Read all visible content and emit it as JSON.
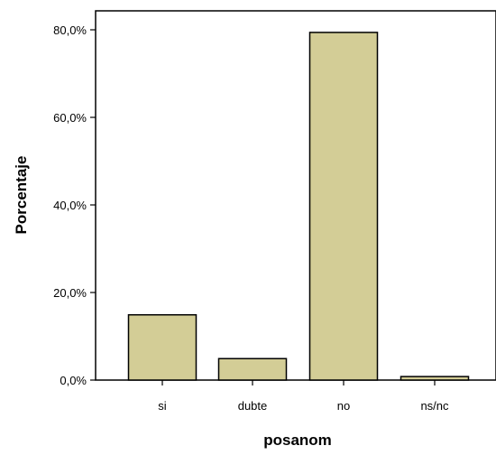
{
  "chart_data": {
    "type": "bar",
    "categories": [
      "si",
      "dubte",
      "no",
      "ns/nc"
    ],
    "values": [
      14.9,
      4.9,
      79.4,
      0.8
    ],
    "xlabel": "posanom",
    "ylabel": "Porcentaje",
    "ylim": [
      0,
      80
    ],
    "yticks": [
      0,
      20,
      40,
      60,
      80
    ],
    "ytick_labels": [
      "0,0%",
      "20,0%",
      "40,0%",
      "60,0%",
      "80,0%"
    ],
    "grid": false,
    "legend": "none",
    "colors": {
      "bar_fill": "#d3cd96",
      "bar_stroke": "#000000",
      "axis": "#000000",
      "background": "#ffffff"
    }
  }
}
